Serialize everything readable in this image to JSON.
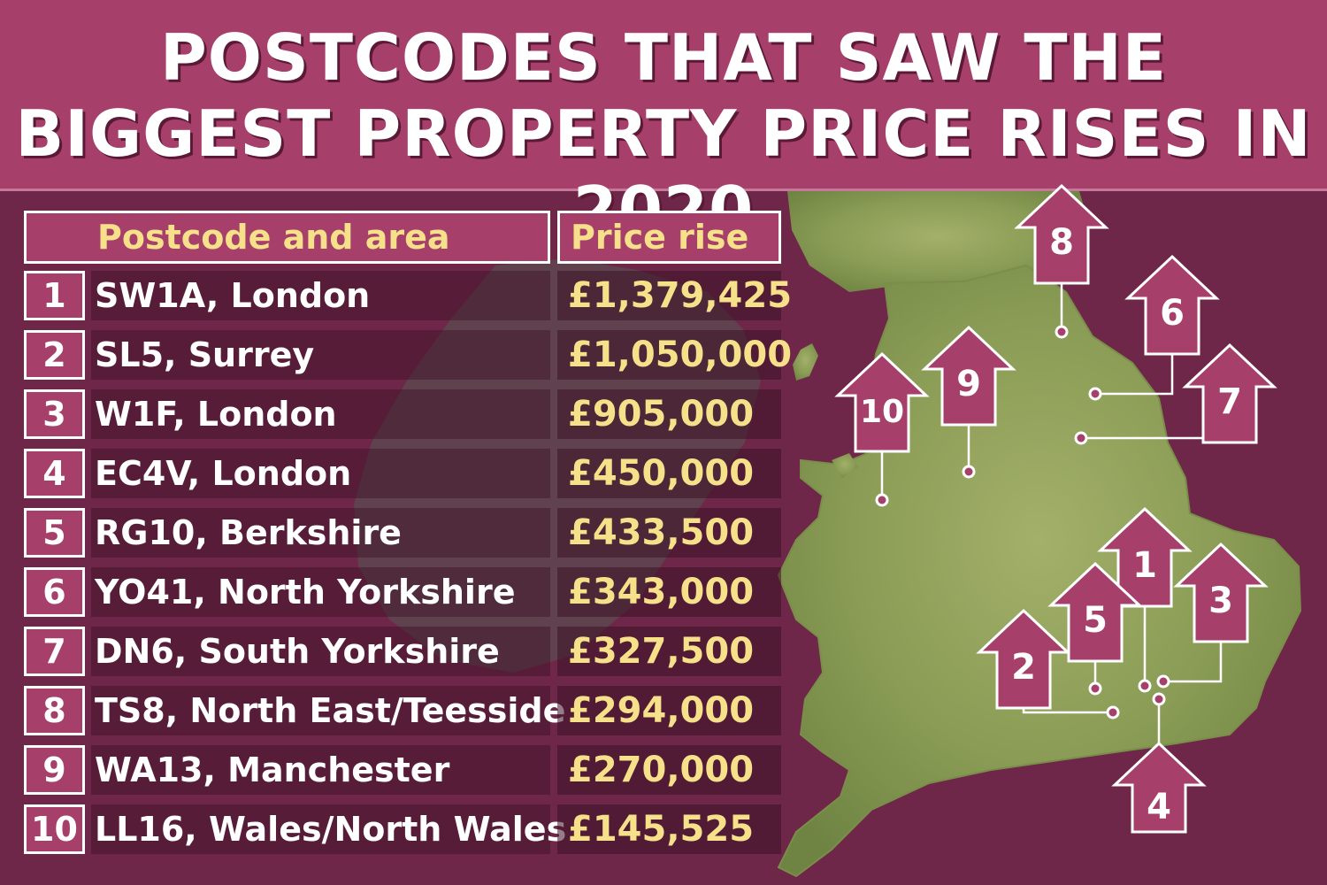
{
  "header": {
    "title": "POSTCODES THAT SAW THE BIGGEST PROPERTY PRICE RISES IN 2020"
  },
  "chart_data": {
    "type": "table",
    "title": "POSTCODES THAT SAW THE BIGGEST PROPERTY PRICE RISES IN 2020",
    "columns": [
      "Postcode and area",
      "Price rise"
    ],
    "rows": [
      {
        "rank": "1",
        "area": "SW1A, London",
        "price": "£1,379,425",
        "value": 1379425
      },
      {
        "rank": "2",
        "area": "SL5, Surrey",
        "price": "£1,050,000",
        "value": 1050000
      },
      {
        "rank": "3",
        "area": "W1F, London",
        "price": "£905,000",
        "value": 905000
      },
      {
        "rank": "4",
        "area": "EC4V, London",
        "price": "£450,000",
        "value": 450000
      },
      {
        "rank": "5",
        "area": "RG10, Berkshire",
        "price": "£433,500",
        "value": 433500
      },
      {
        "rank": "6",
        "area": "YO41, North Yorkshire",
        "price": "£343,000",
        "value": 343000
      },
      {
        "rank": "7",
        "area": "DN6, South Yorkshire",
        "price": "£327,500",
        "value": 327500
      },
      {
        "rank": "8",
        "area": "TS8, North East/Teesside",
        "price": "£294,000",
        "value": 294000
      },
      {
        "rank": "9",
        "area": "WA13, Manchester",
        "price": "£270,000",
        "value": 270000
      },
      {
        "rank": "10",
        "area": "LL16, Wales/North Wales",
        "price": "£145,525",
        "value": 145525
      }
    ],
    "map_markers": [
      "1",
      "2",
      "3",
      "4",
      "5",
      "6",
      "7",
      "8",
      "9",
      "10"
    ]
  },
  "colors": {
    "header_bg": "#a6406a",
    "page_bg": "#6e2748",
    "heading_text": "#f6e08a",
    "price_text": "#f6e08a",
    "map_land": "#8fa65c"
  }
}
